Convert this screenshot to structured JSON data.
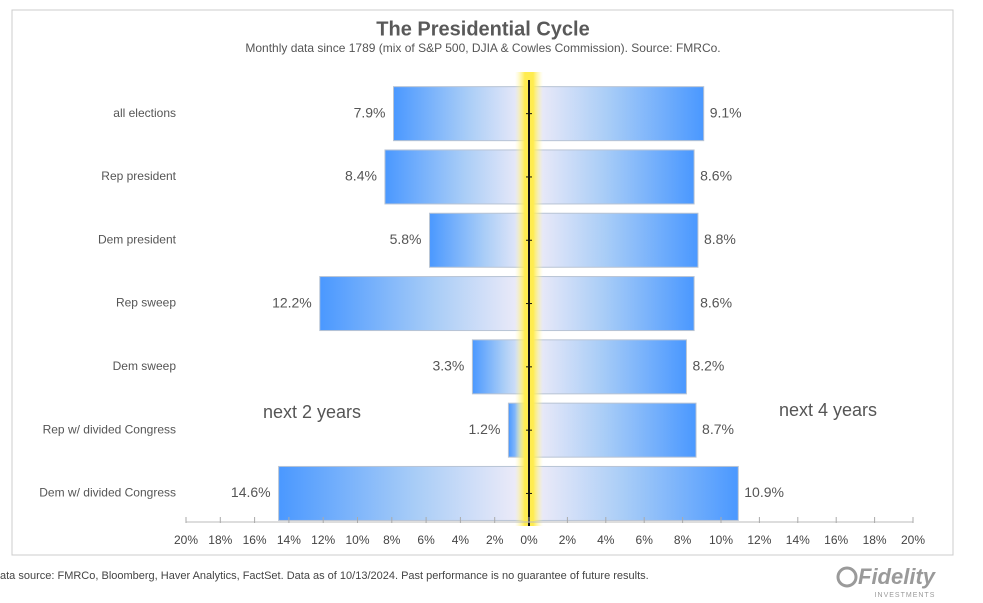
{
  "chart_data": {
    "type": "butterfly",
    "title": "The Presidential Cycle",
    "subtitle": "Monthly data since 1789 (mix of S&P 500, DJIA & Cowles Commission). Source: FMRCo.",
    "categories": [
      "all elections",
      "Rep president",
      "Dem president",
      "Rep sweep",
      "Dem sweep",
      "Rep w/ divided Congress",
      "Dem w/ divided Congress"
    ],
    "series": [
      {
        "side": "left",
        "color": "#4a98ff",
        "values": [
          7.9,
          8.4,
          5.8,
          12.2,
          3.3,
          1.2,
          14.6
        ],
        "value_labels": [
          "7.9%",
          "8.4%",
          "5.8%",
          "12.2%",
          "3.3%",
          "1.2%",
          "14.6%"
        ]
      },
      {
        "side": "right",
        "color": "#4a98ff",
        "values": [
          9.1,
          8.6,
          8.8,
          8.6,
          8.2,
          8.7,
          10.9
        ],
        "value_labels": [
          "9.1%",
          "8.6%",
          "8.8%",
          "8.6%",
          "8.2%",
          "8.7%",
          "10.9%"
        ]
      }
    ],
    "annotations": [
      "next 2 years",
      "next 4 years"
    ],
    "xlim": [
      -20,
      20
    ],
    "xticks": [
      {
        "value": -20,
        "label": "20%"
      },
      {
        "value": -18,
        "label": "18%"
      },
      {
        "value": -16,
        "label": "16%"
      },
      {
        "value": -14,
        "label": "14%"
      },
      {
        "value": -12,
        "label": "12%"
      },
      {
        "value": -10,
        "label": "10%"
      },
      {
        "value": -8,
        "label": "8%"
      },
      {
        "value": -6,
        "label": "6%"
      },
      {
        "value": -4,
        "label": "4%"
      },
      {
        "value": -2,
        "label": "2%"
      },
      {
        "value": 0,
        "label": "0%"
      },
      {
        "value": 2,
        "label": "2%"
      },
      {
        "value": 4,
        "label": "4%"
      },
      {
        "value": 6,
        "label": "6%"
      },
      {
        "value": 8,
        "label": "8%"
      },
      {
        "value": 10,
        "label": "10%"
      },
      {
        "value": 12,
        "label": "12%"
      },
      {
        "value": 14,
        "label": "14%"
      },
      {
        "value": 16,
        "label": "16%"
      },
      {
        "value": 18,
        "label": "18%"
      },
      {
        "value": 20,
        "label": "20%"
      }
    ],
    "footnote": "ata source: FMRCo, Bloomberg, Haver Analytics, FactSet. Data as of 10/13/2024. Past performance is no guarantee of future results.",
    "logo": "Fidelity",
    "logo_sub": "INVESTMENTS"
  }
}
